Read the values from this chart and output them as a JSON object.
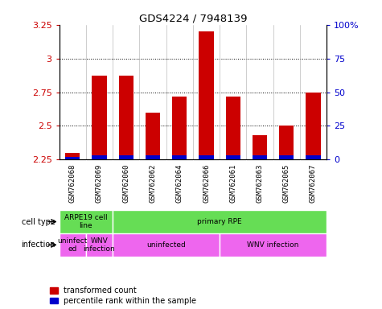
{
  "title": "GDS4224 / 7948139",
  "samples": [
    "GSM762068",
    "GSM762069",
    "GSM762060",
    "GSM762062",
    "GSM762064",
    "GSM762066",
    "GSM762061",
    "GSM762063",
    "GSM762065",
    "GSM762067"
  ],
  "transformed_counts": [
    2.3,
    2.87,
    2.87,
    2.6,
    2.72,
    3.2,
    2.72,
    2.43,
    2.5,
    2.75
  ],
  "percentile_ranks": [
    2,
    3,
    3,
    3,
    3,
    3,
    3,
    3,
    3,
    3
  ],
  "ylim_left": [
    2.25,
    3.25
  ],
  "ylim_right": [
    0,
    100
  ],
  "yticks_left": [
    2.25,
    2.5,
    2.75,
    3.0,
    3.25
  ],
  "yticks_right": [
    0,
    25,
    50,
    75,
    100
  ],
  "ytick_labels_left": [
    "2.25",
    "2.5",
    "2.75",
    "3",
    "3.25"
  ],
  "ytick_labels_right": [
    "0",
    "25",
    "50",
    "75",
    "100%"
  ],
  "bar_bottom": 2.25,
  "bar_color_red": "#cc0000",
  "bar_color_blue": "#0000cc",
  "cell_type_groups": [
    {
      "label": "ARPE19 cell\nline",
      "start": 0,
      "end": 2
    },
    {
      "label": "primary RPE",
      "start": 2,
      "end": 10
    }
  ],
  "infection_groups": [
    {
      "label": "uninfect\ned",
      "start": 0,
      "end": 1
    },
    {
      "label": "WNV\ninfection",
      "start": 1,
      "end": 2
    },
    {
      "label": "uninfected",
      "start": 2,
      "end": 6
    },
    {
      "label": "WNV infection",
      "start": 6,
      "end": 10
    }
  ],
  "cell_type_label": "cell type",
  "infection_label": "infection",
  "legend_red_label": "transformed count",
  "legend_blue_label": "percentile rank within the sample",
  "cell_color": "#66dd55",
  "infection_color_light": "#ee66ee",
  "infection_color_dark": "#cc44cc",
  "grid_dotted_vals": [
    2.5,
    2.75,
    3.0
  ],
  "sample_bg_color": "#d8d8d8",
  "tick_color_left": "#cc0000",
  "tick_color_right": "#0000cc",
  "chart_bg": "#ffffff"
}
